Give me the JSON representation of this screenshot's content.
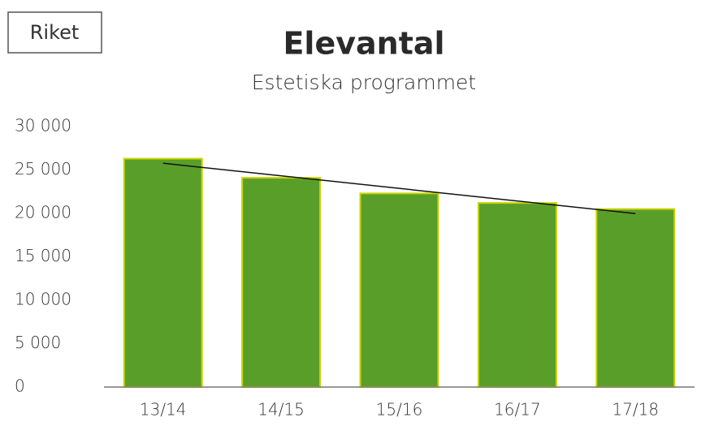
{
  "label": "Riket",
  "chart_data": {
    "type": "bar",
    "title": "Elevantal",
    "subtitle": "Estetiska programmet",
    "categories": [
      "13/14",
      "14/15",
      "15/16",
      "16/17",
      "17/18"
    ],
    "values": [
      26300,
      24100,
      22300,
      21200,
      20500
    ],
    "color": "#5a9e2a",
    "trendline": true,
    "ylim": [
      0,
      30000
    ],
    "yticks": [
      0,
      {
        "value": 5000,
        "label": "5 000"
      },
      {
        "value": 10000,
        "label": "10 000"
      },
      {
        "value": 15000,
        "label": "15 000"
      },
      {
        "value": 20000,
        "label": "20 000"
      },
      {
        "value": 25000,
        "label": "25 000"
      },
      {
        "value": 30000,
        "label": "30 000"
      }
    ],
    "grid": false
  }
}
